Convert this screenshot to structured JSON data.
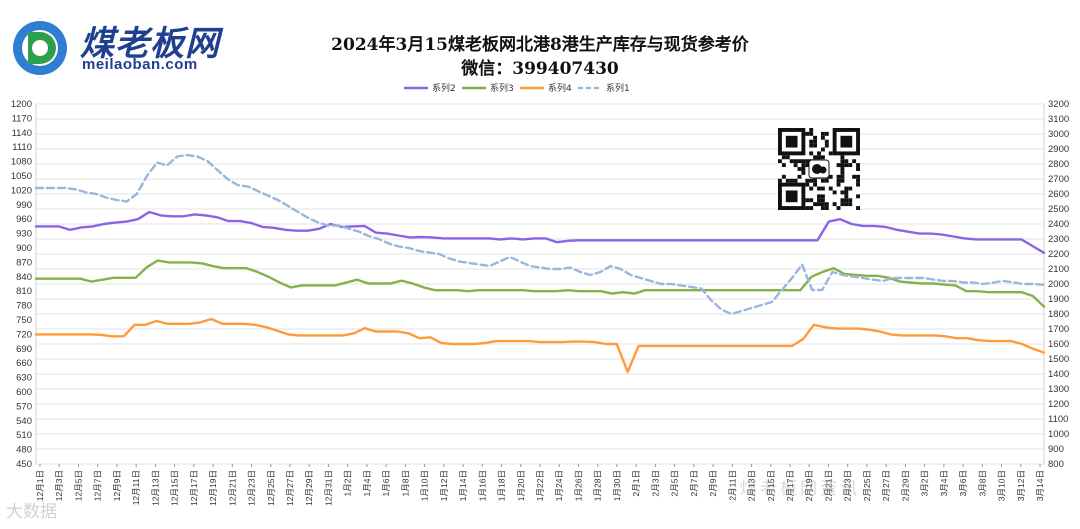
{
  "brand": {
    "name": "煤老板网",
    "domain": "meilaoban.com",
    "watermark_left": "大数据",
    "watermark_right": "煤老板网资讯"
  },
  "chart_data": {
    "type": "line",
    "title": "2024年3月15煤老板网北港8港生产库存与现货参考价",
    "subtitle": "微信：399407430",
    "left_axis": {
      "min": 450,
      "max": 1200,
      "step": 30
    },
    "right_axis": {
      "min": 800,
      "max": 3200,
      "step": 100
    },
    "x_labels": [
      "12月1日",
      "12月3日",
      "12月5日",
      "12月7日",
      "12月9日",
      "12月11日",
      "12月13日",
      "12月15日",
      "12月17日",
      "12月19日",
      "12月21日",
      "12月23日",
      "12月25日",
      "12月27日",
      "12月29日",
      "12月31日",
      "1月2日",
      "1月4日",
      "1月6日",
      "1月8日",
      "1月10日",
      "1月12日",
      "1月14日",
      "1月16日",
      "1月18日",
      "1月20日",
      "1月22日",
      "1月24日",
      "1月26日",
      "1月28日",
      "1月30日",
      "2月1日",
      "2月3日",
      "2月5日",
      "2月7日",
      "2月9日",
      "2月11日",
      "2月13日",
      "2月15日",
      "2月17日",
      "2月19日",
      "2月21日",
      "2月23日",
      "2月25日",
      "2月27日",
      "2月29日",
      "3月2日",
      "3月4日",
      "3月6日",
      "3月8日",
      "3月10日",
      "3月12日",
      "3月14日"
    ],
    "series": [
      {
        "name": "系列2",
        "axis": "left",
        "color": "#8a63e6",
        "values": [
          945,
          945,
          945,
          938,
          943,
          945,
          950,
          953,
          955,
          960,
          975,
          968,
          966,
          966,
          970,
          968,
          964,
          956,
          956,
          952,
          944,
          942,
          938,
          936,
          936,
          940,
          950,
          944,
          945,
          946,
          932,
          930,
          926,
          922,
          923,
          922,
          920,
          920,
          920,
          920,
          920,
          918,
          920,
          918,
          920,
          920,
          912,
          915,
          916,
          916,
          916,
          916,
          916,
          916,
          916,
          916,
          916,
          916,
          916,
          916,
          916,
          916,
          916,
          916,
          916,
          916,
          916,
          916,
          916,
          916,
          955,
          960,
          950,
          946,
          946,
          944,
          938,
          934,
          930,
          930,
          928,
          924,
          920,
          918,
          918,
          918,
          918,
          918,
          904,
          890
        ]
      },
      {
        "name": "系列3",
        "axis": "left",
        "color": "#86b04a",
        "values": [
          836,
          836,
          836,
          836,
          836,
          830,
          834,
          838,
          838,
          838,
          860,
          874,
          870,
          870,
          870,
          868,
          862,
          858,
          858,
          858,
          850,
          840,
          828,
          818,
          822,
          822,
          822,
          822,
          828,
          834,
          826,
          826,
          826,
          832,
          826,
          818,
          812,
          812,
          812,
          810,
          812,
          812,
          812,
          812,
          812,
          810,
          810,
          810,
          812,
          810,
          810,
          810,
          805,
          808,
          805,
          812,
          812,
          812,
          812,
          812,
          812,
          812,
          812,
          812,
          812,
          812,
          812,
          812,
          812,
          812,
          840,
          850,
          858,
          846,
          844,
          842,
          842,
          838,
          830,
          828,
          826,
          826,
          824,
          822,
          810,
          810,
          808,
          808,
          808,
          808,
          800,
          778
        ]
      },
      {
        "name": "系列4",
        "axis": "left",
        "color": "#ff9a3c",
        "values": [
          720,
          720,
          720,
          720,
          720,
          720,
          719,
          716,
          716,
          740,
          740,
          748,
          742,
          742,
          742,
          745,
          752,
          742,
          742,
          742,
          740,
          735,
          728,
          720,
          718,
          718,
          718,
          718,
          718,
          722,
          733,
          726,
          726,
          726,
          722,
          712,
          714,
          702,
          700,
          700,
          700,
          702,
          706,
          706,
          706,
          706,
          704,
          704,
          704,
          705,
          705,
          704,
          700,
          700,
          642,
          696,
          696,
          696,
          696,
          696,
          696,
          696,
          696,
          696,
          696,
          696,
          696,
          696,
          696,
          696,
          710,
          740,
          735,
          732,
          732,
          732,
          730,
          726,
          720,
          718,
          718,
          718,
          718,
          716,
          712,
          712,
          708,
          706,
          706,
          706,
          700,
          690,
          682
        ]
      },
      {
        "name": "系列1",
        "axis": "right",
        "color": "#9ab6dc",
        "values": [
          2640,
          2640,
          2640,
          2640,
          2630,
          2610,
          2600,
          2575,
          2560,
          2550,
          2600,
          2720,
          2810,
          2790,
          2850,
          2860,
          2850,
          2820,
          2760,
          2700,
          2660,
          2650,
          2620,
          2590,
          2560,
          2520,
          2480,
          2440,
          2410,
          2390,
          2390,
          2370,
          2350,
          2320,
          2300,
          2270,
          2250,
          2240,
          2220,
          2210,
          2200,
          2170,
          2150,
          2140,
          2130,
          2120,
          2150,
          2180,
          2150,
          2120,
          2110,
          2100,
          2100,
          2110,
          2080,
          2060,
          2080,
          2120,
          2100,
          2060,
          2040,
          2020,
          2000,
          2000,
          1990,
          1980,
          1970,
          1890,
          1830,
          1800,
          1820,
          1840,
          1860,
          1880,
          1960,
          2040,
          2130,
          1960,
          1960,
          2080,
          2060,
          2050,
          2040,
          2030,
          2020,
          2040,
          2040,
          2040,
          2040,
          2030,
          2020,
          2020,
          2010,
          2010,
          2000,
          2010,
          2020,
          2010,
          2000,
          2000,
          1995
        ]
      }
    ],
    "legend": [
      "系列2",
      "系列3",
      "系列4",
      "系列1"
    ]
  }
}
